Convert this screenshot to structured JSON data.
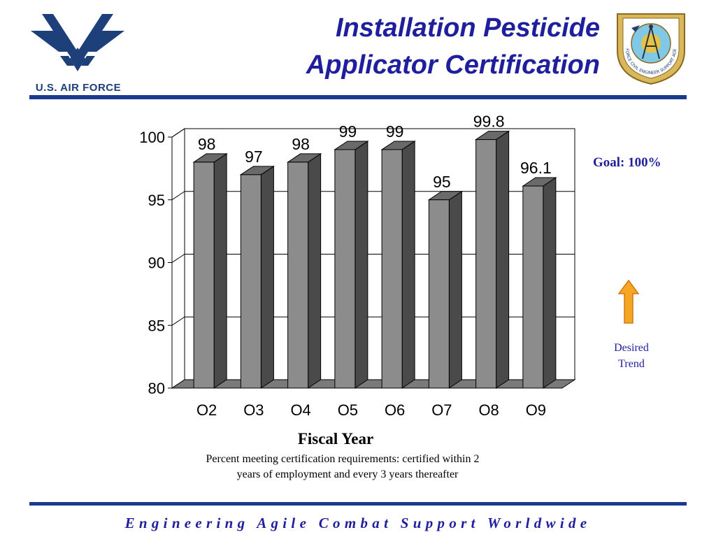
{
  "header": {
    "title_line1": "Installation Pesticide",
    "title_line2": "Applicator Certification",
    "brand_text": "U.S. AIR FORCE",
    "emblem_text": "AIR FORCE CIVIL ENGINEER SUPPORT AGENCY"
  },
  "colors": {
    "title": "#1f1f9e",
    "rule": "#1a3a8f",
    "bar_front": "#8c8c8c",
    "bar_side": "#4a4a4a",
    "arrow": "#f5a623"
  },
  "chart_data": {
    "type": "bar",
    "style": "3d",
    "categories": [
      "O2",
      "O3",
      "O4",
      "O5",
      "O6",
      "O7",
      "O8",
      "O9"
    ],
    "values": [
      98,
      97,
      98,
      99,
      99,
      95,
      99.8,
      96.1
    ],
    "labels": [
      "98",
      "97",
      "98",
      "99",
      "99",
      "95",
      "99.8",
      "96.1"
    ],
    "ylim": [
      80,
      100
    ],
    "yticks": [
      80,
      85,
      90,
      95,
      100
    ],
    "xlabel": "Fiscal Year",
    "ylabel": "",
    "grid": true,
    "legend": "none"
  },
  "side": {
    "goal": "Goal:  100%",
    "desired_line1": "Desired",
    "desired_line2": "Trend",
    "arrow_icon": "up-arrow-icon"
  },
  "note": {
    "line1": "Percent meeting certification requirements:  certified within 2",
    "line2": "years of employment and every 3 years thereafter"
  },
  "footer": {
    "text": "Engineering Agile Combat Support Worldwide"
  }
}
